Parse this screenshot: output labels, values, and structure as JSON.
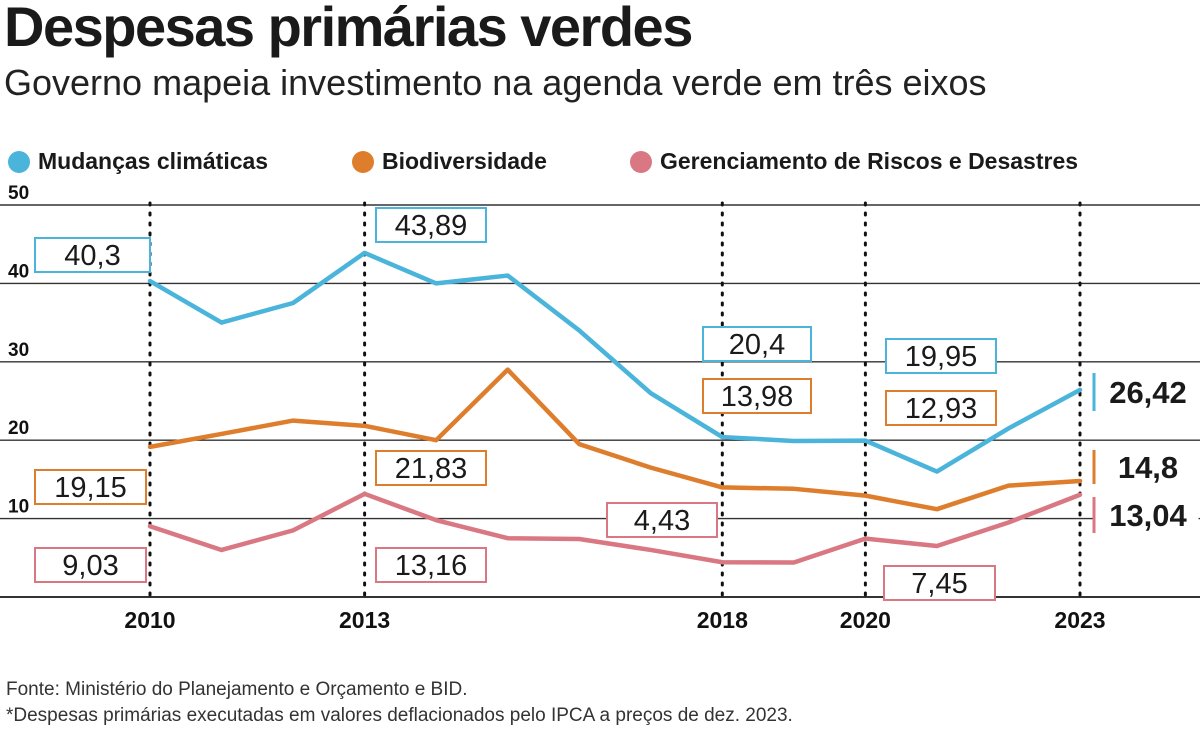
{
  "header": {
    "title": "Despesas primárias verdes",
    "subtitle": "Governo mapeia investimento na agenda verde em três eixos"
  },
  "footer": {
    "source": "Fonte: Ministério do Planejamento e Orçamento e BID.",
    "note": "*Despesas primárias executadas em valores deflacionados pelo IPCA a preços de dez. 2023."
  },
  "colors": {
    "mudancas": "#4ab4db",
    "biodiversidade": "#de7d2c",
    "riscos": "#d97882",
    "axis": "#222222"
  },
  "chart_data": {
    "type": "line",
    "title": "Despesas primárias verdes",
    "subtitle": "Governo mapeia investimento na agenda verde em três eixos",
    "x": [
      2010,
      2011,
      2012,
      2013,
      2014,
      2015,
      2016,
      2017,
      2018,
      2019,
      2020,
      2021,
      2022,
      2023
    ],
    "x_ticks": [
      "2010",
      "2013",
      "2018",
      "2020",
      "2023"
    ],
    "y_ticks": [
      "10",
      "20",
      "30",
      "40",
      "50"
    ],
    "ylim": [
      0,
      50
    ],
    "grid": "horizontal",
    "legend": "top",
    "series": [
      {
        "name": "Mudanças climáticas",
        "color": "#4ab4db",
        "values": [
          40.3,
          35,
          37.5,
          43.89,
          40,
          41,
          34,
          26,
          20.4,
          19.9,
          19.95,
          16,
          21.5,
          26.42
        ],
        "labels": [
          {
            "year": 2010,
            "text": "40,3",
            "bold": false
          },
          {
            "year": 2013,
            "text": "43,89",
            "bold": false
          },
          {
            "year": 2018,
            "text": "20,4",
            "bold": false
          },
          {
            "year": 2020,
            "text": "19,95",
            "bold": false
          },
          {
            "year": 2023,
            "text": "26,42",
            "bold": true
          }
        ]
      },
      {
        "name": "Biodiversidade",
        "color": "#de7d2c",
        "values": [
          19.15,
          20.8,
          22.5,
          21.83,
          20,
          29,
          19.5,
          16.5,
          13.98,
          13.8,
          12.93,
          11.2,
          14.2,
          14.8
        ],
        "labels": [
          {
            "year": 2010,
            "text": "19,15",
            "bold": false
          },
          {
            "year": 2013,
            "text": "21,83",
            "bold": false
          },
          {
            "year": 2018,
            "text": "13,98",
            "bold": false
          },
          {
            "year": 2020,
            "text": "12,93",
            "bold": false
          },
          {
            "year": 2023,
            "text": "14,8",
            "bold": true
          }
        ]
      },
      {
        "name": "Gerenciamento de Riscos e Desastres",
        "color": "#d97882",
        "values": [
          9.03,
          6,
          8.5,
          13.16,
          9.8,
          7.5,
          7.4,
          6,
          4.43,
          4.4,
          7.45,
          6.5,
          9.5,
          13.04
        ],
        "labels": [
          {
            "year": 2010,
            "text": "9,03",
            "bold": false
          },
          {
            "year": 2013,
            "text": "13,16",
            "bold": false
          },
          {
            "year": 2018,
            "text": "4,43",
            "bold": false
          },
          {
            "year": 2020,
            "text": "7,45",
            "bold": false
          },
          {
            "year": 2023,
            "text": "13,04",
            "bold": true
          }
        ]
      }
    ]
  }
}
